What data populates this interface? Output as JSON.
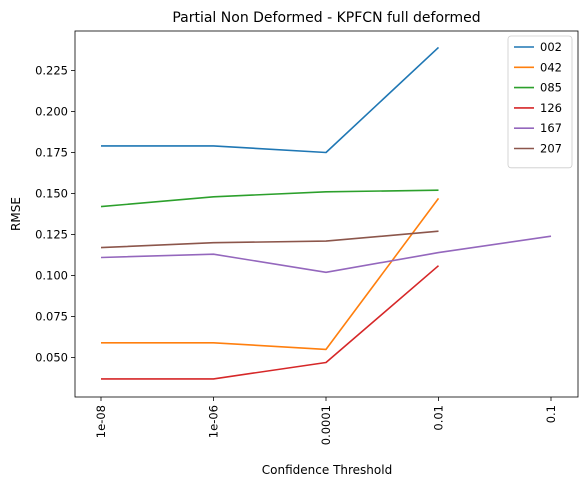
{
  "chart_data": {
    "type": "line",
    "title": "Partial Non Deformed - KPFCN full deformed",
    "xlabel": "Confidence Threshold",
    "ylabel": "RMSE",
    "x": [
      "1e-08",
      "1e-06",
      "0.0001",
      "0.01",
      "0.1"
    ],
    "yticks": [
      "0.050",
      "0.075",
      "0.100",
      "0.125",
      "0.150",
      "0.175",
      "0.200",
      "0.225"
    ],
    "ylim": [
      0.026,
      0.249
    ],
    "grid": false,
    "legend_position": "top-right",
    "series": [
      {
        "name": "002",
        "color": "#1f77b4",
        "values": [
          0.179,
          0.179,
          0.175,
          0.239,
          null
        ]
      },
      {
        "name": "042",
        "color": "#ff7f0e",
        "values": [
          0.059,
          0.059,
          0.055,
          0.147,
          null
        ]
      },
      {
        "name": "085",
        "color": "#2ca02c",
        "values": [
          0.142,
          0.148,
          0.151,
          0.152,
          null
        ]
      },
      {
        "name": "126",
        "color": "#d62728",
        "values": [
          0.037,
          0.037,
          0.047,
          0.106,
          null
        ]
      },
      {
        "name": "167",
        "color": "#9467bd",
        "values": [
          0.111,
          0.113,
          0.102,
          0.114,
          0.124
        ]
      },
      {
        "name": "207",
        "color": "#8c564b",
        "values": [
          0.117,
          0.12,
          0.121,
          0.127,
          null
        ]
      }
    ]
  }
}
